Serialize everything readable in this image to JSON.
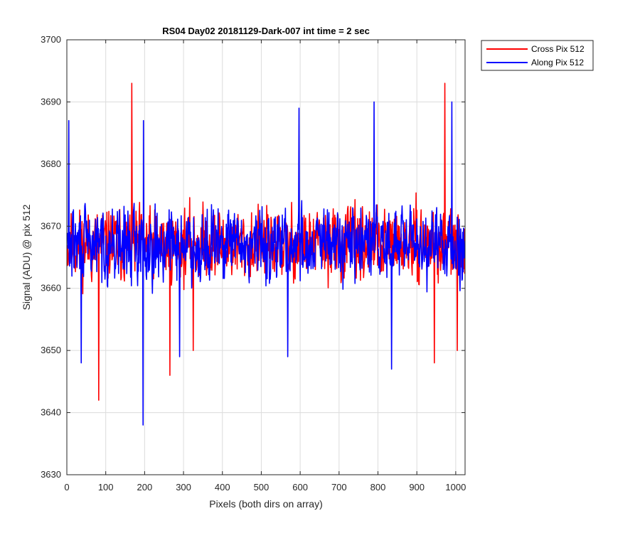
{
  "chart_data": {
    "type": "line",
    "title": "RS04 Day02 20181129-Dark-007 int time = 2 sec",
    "xlabel": "Pixels (both dirs on array)",
    "ylabel": "Signal (ADU) @ pix 512",
    "xlim": [
      0,
      1024
    ],
    "ylim": [
      3630,
      3700
    ],
    "xticks": [
      0,
      100,
      200,
      300,
      400,
      500,
      600,
      700,
      800,
      900,
      1000
    ],
    "yticks": [
      3630,
      3640,
      3650,
      3660,
      3670,
      3680,
      3690,
      3700
    ],
    "grid": true,
    "legend_position": "outside-top-right",
    "series": [
      {
        "name": "Cross Pix 512",
        "color": "#ff0000",
        "noise": {
          "x_start": 1,
          "x_end": 1024,
          "mean": 3667,
          "amplitude": 9,
          "seed": 11
        },
        "peaks": [
          {
            "x": 82,
            "y": 3642
          },
          {
            "x": 167,
            "y": 3693
          },
          {
            "x": 265,
            "y": 3646
          },
          {
            "x": 325,
            "y": 3650
          },
          {
            "x": 945,
            "y": 3648
          },
          {
            "x": 972,
            "y": 3693
          },
          {
            "x": 1004,
            "y": 3650
          }
        ]
      },
      {
        "name": "Along Pix 512",
        "color": "#0000ff",
        "noise": {
          "x_start": 1,
          "x_end": 1024,
          "mean": 3667,
          "amplitude": 9,
          "seed": 29
        },
        "peaks": [
          {
            "x": 5,
            "y": 3687
          },
          {
            "x": 37,
            "y": 3648
          },
          {
            "x": 196,
            "y": 3638
          },
          {
            "x": 197,
            "y": 3687
          },
          {
            "x": 290,
            "y": 3649
          },
          {
            "x": 568,
            "y": 3649
          },
          {
            "x": 597,
            "y": 3689
          },
          {
            "x": 790,
            "y": 3690
          },
          {
            "x": 835,
            "y": 3647
          },
          {
            "x": 990,
            "y": 3690
          }
        ]
      }
    ]
  }
}
